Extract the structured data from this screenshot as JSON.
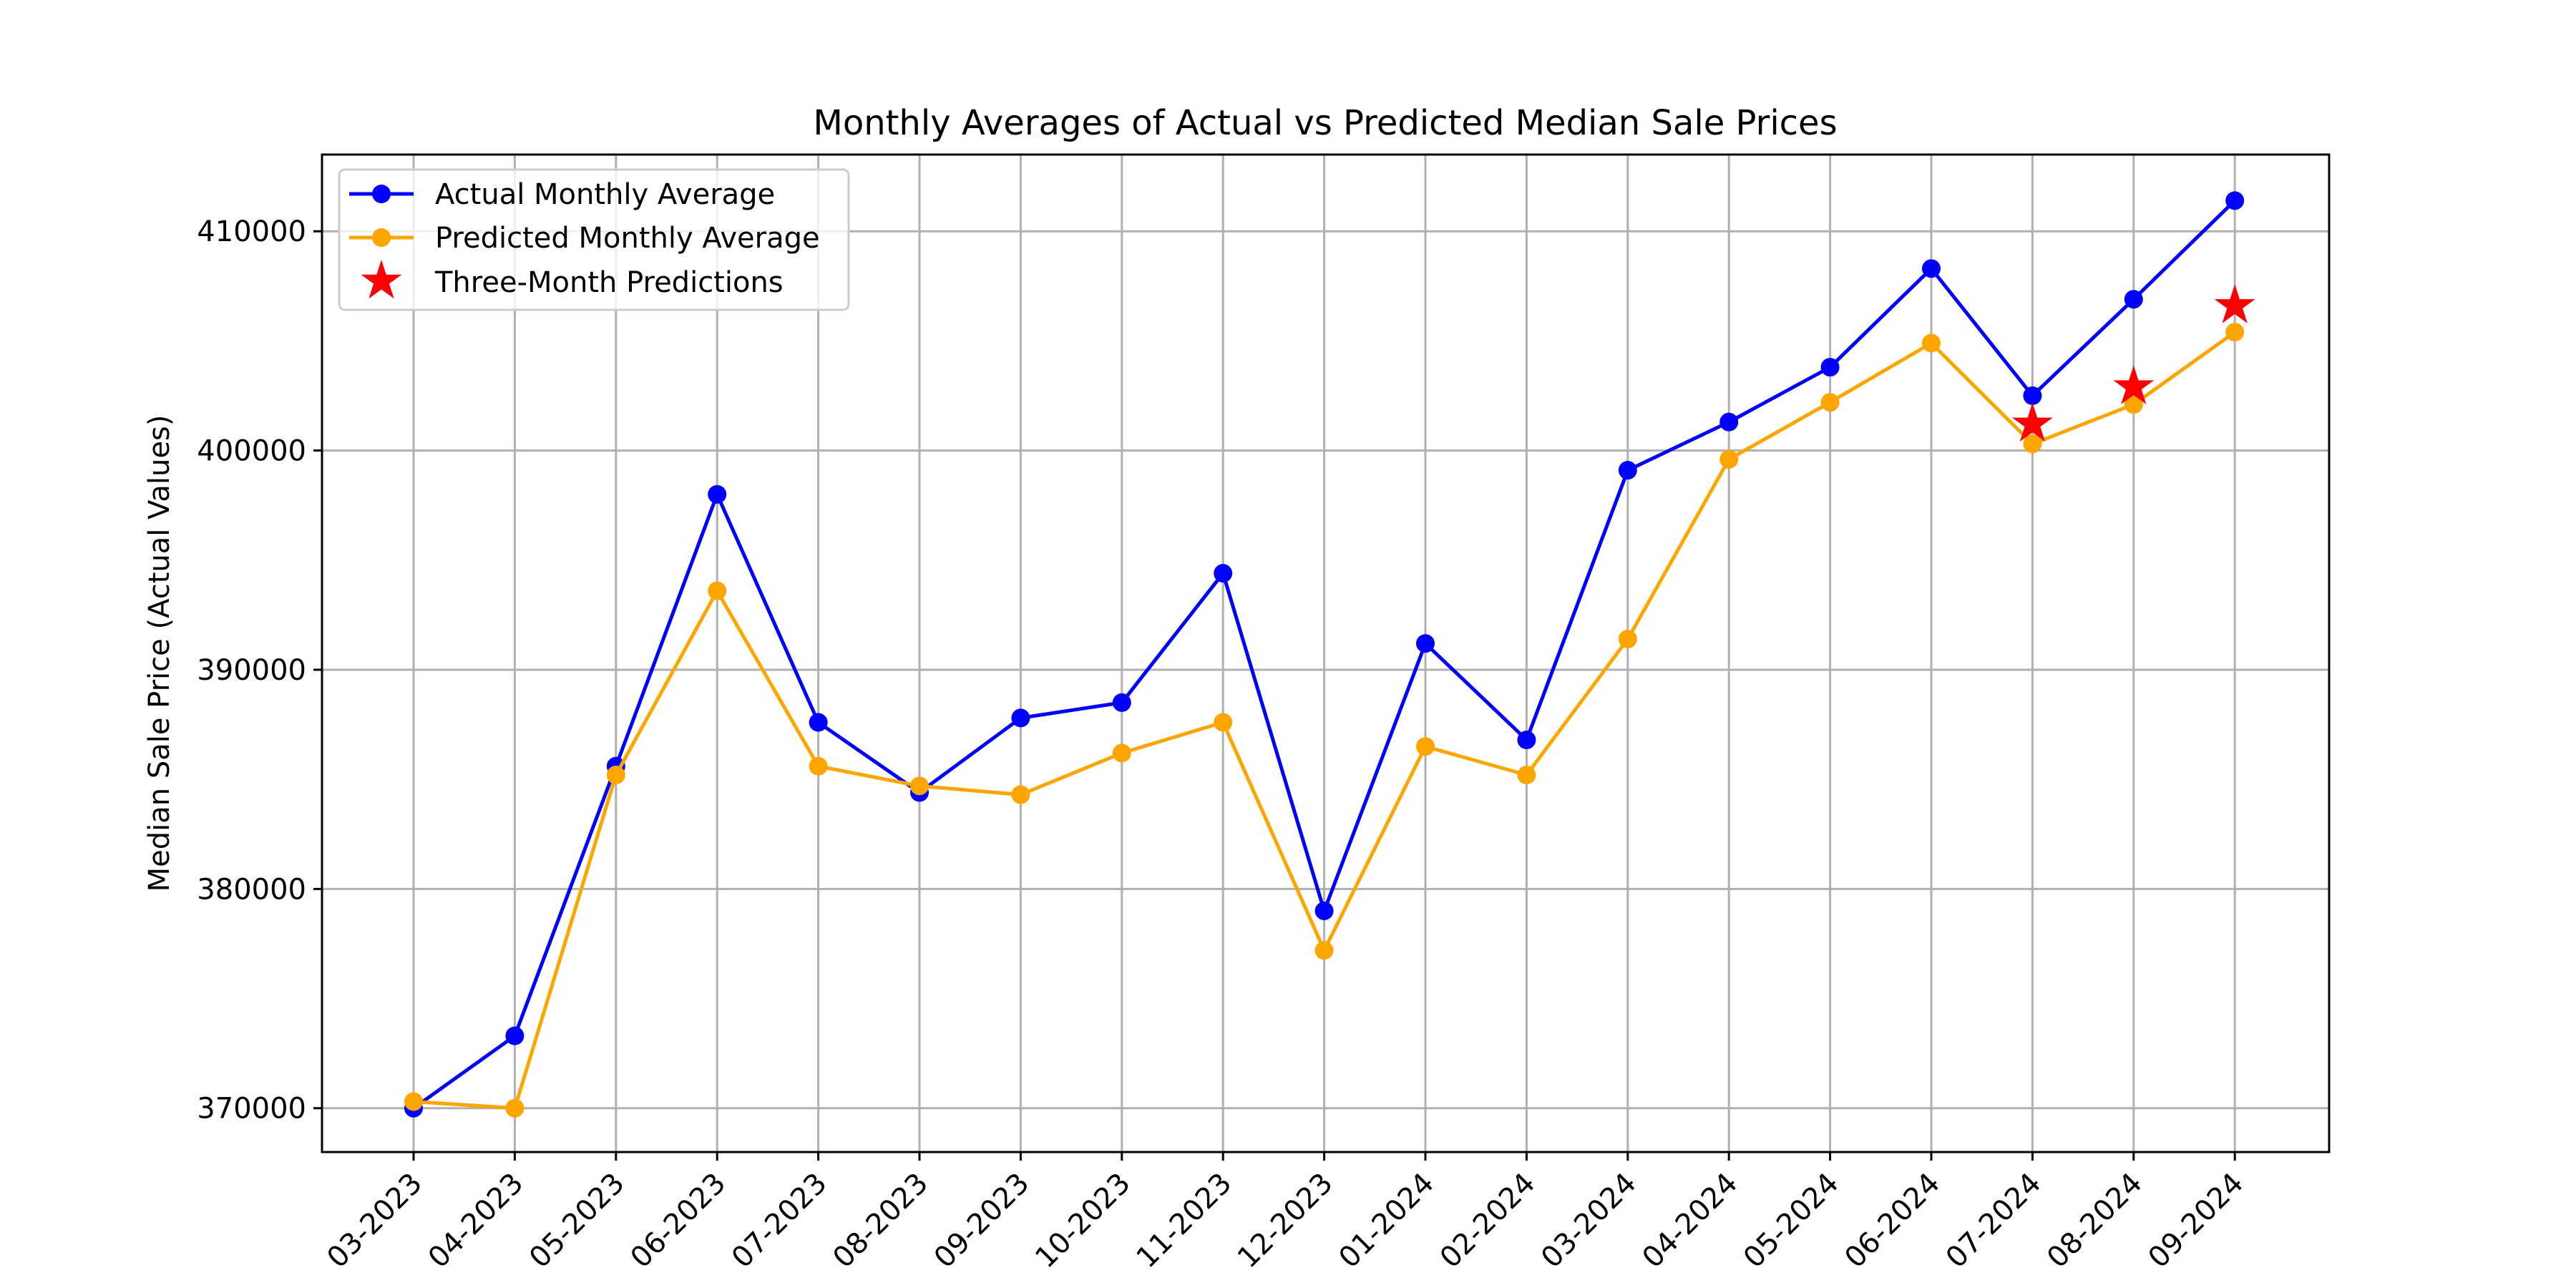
{
  "colors": {
    "actual": "#0000ff",
    "predicted": "#ffa500",
    "three_month": "#ff0000",
    "grid": "#b0b0b0",
    "axes": "#000000"
  },
  "chart_data": {
    "type": "line",
    "title": "Monthly Averages of Actual vs Predicted Median Sale Prices",
    "xlabel": "",
    "ylabel": "Median Sale Price (Actual Values)",
    "categories": [
      "03-2023",
      "04-2023",
      "05-2023",
      "06-2023",
      "07-2023",
      "08-2023",
      "09-2023",
      "10-2023",
      "11-2023",
      "12-2023",
      "01-2024",
      "02-2024",
      "03-2024",
      "04-2024",
      "05-2024",
      "06-2024",
      "07-2024",
      "08-2024",
      "09-2024"
    ],
    "y_ticks": [
      "370000",
      "380000",
      "390000",
      "400000",
      "410000"
    ],
    "y_tick_values": [
      370000,
      380000,
      390000,
      400000,
      410000
    ],
    "ylim": [
      368000,
      413500
    ],
    "grid": true,
    "legend_position": "top-left",
    "series": [
      {
        "name": "Actual Monthly Average",
        "marker": "circle",
        "color": "#0000ff",
        "values": [
          370000,
          373300,
          385600,
          398000,
          387600,
          384400,
          387800,
          388500,
          394400,
          379000,
          391200,
          386800,
          399100,
          401300,
          403800,
          408300,
          402500,
          406900,
          411400
        ]
      },
      {
        "name": "Predicted Monthly Average",
        "marker": "circle",
        "color": "#ffa500",
        "values": [
          370300,
          370000,
          385200,
          393600,
          385600,
          384700,
          384300,
          386200,
          387600,
          377200,
          386500,
          385200,
          391400,
          399600,
          402200,
          404900,
          400300,
          402100,
          405400
        ]
      },
      {
        "name": "Three-Month Predictions",
        "marker": "star",
        "color": "#ff0000",
        "x": [
          "07-2024",
          "08-2024",
          "09-2024"
        ],
        "values": [
          401200,
          402900,
          406600
        ]
      }
    ]
  }
}
